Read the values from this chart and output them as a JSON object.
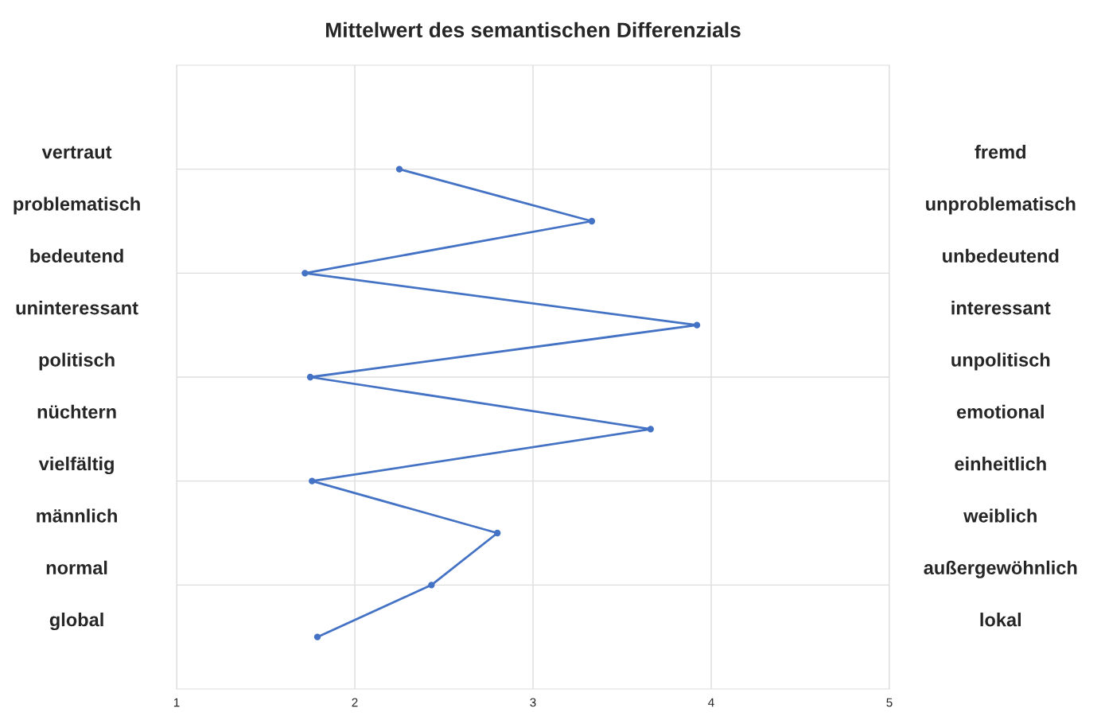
{
  "chart_data": {
    "type": "line",
    "title": "Mittelwert des semantischen Differenzials",
    "orientation": "horizontal",
    "categories": [
      "vertraut",
      "problematisch",
      "bedeutend",
      "uninteressant",
      "politisch",
      "nüchtern",
      "vielfältig",
      "männlich",
      "normal",
      "global"
    ],
    "y2_categories": [
      "fremd",
      "unproblematisch",
      "unbedeutend",
      "interessant",
      "unpolitisch",
      "emotional",
      "einheitlich",
      "weiblich",
      "außergewöhnlich",
      "lokal"
    ],
    "series": [
      {
        "color": "#4472c4",
        "values": [
          2.25,
          3.33,
          1.72,
          3.92,
          1.75,
          3.66,
          1.76,
          2.8,
          2.43,
          1.79
        ]
      }
    ],
    "xlim": [
      1,
      5
    ],
    "xticks": [
      1,
      2,
      3,
      4,
      5
    ],
    "grid": true,
    "marker": "circle",
    "line_style": "solid"
  }
}
